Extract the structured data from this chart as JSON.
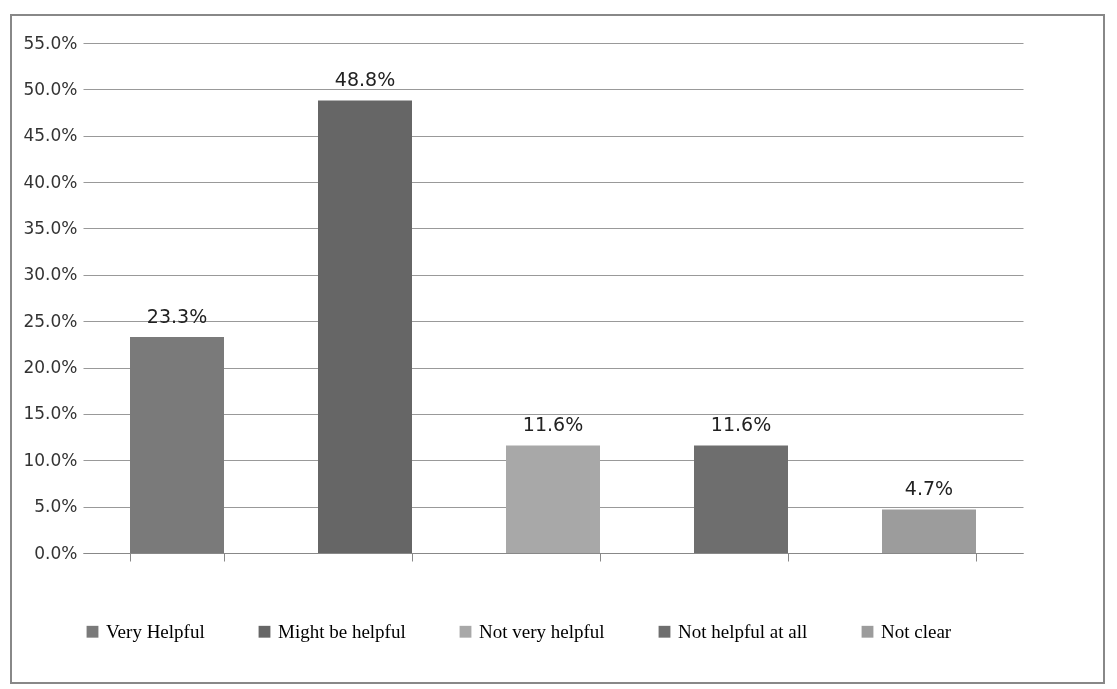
{
  "chart_data": {
    "type": "bar",
    "categories": [
      null,
      null,
      null,
      null,
      null
    ],
    "series": [
      {
        "name": "Very Helpful",
        "color": "#7a7a7a",
        "values": [
          23.3,
          null,
          null,
          null,
          null
        ],
        "value_labels": [
          "23.3%",
          null,
          null,
          null,
          null
        ]
      },
      {
        "name": "Might be helpful",
        "color": "#666666",
        "values": [
          null,
          48.8,
          null,
          null,
          null
        ],
        "value_labels": [
          null,
          "48.8%",
          null,
          null,
          null
        ]
      },
      {
        "name": "Not very helpful",
        "color": "#a8a8a8",
        "values": [
          null,
          null,
          11.6,
          null,
          null
        ],
        "value_labels": [
          null,
          null,
          "11.6%",
          null,
          null
        ]
      },
      {
        "name": "Not helpful at all",
        "color": "#6e6e6e",
        "values": [
          null,
          null,
          null,
          11.6,
          null
        ],
        "value_labels": [
          null,
          null,
          null,
          "11.6%",
          null
        ]
      },
      {
        "name": "Not clear",
        "color": "#9c9c9c",
        "values": [
          null,
          null,
          null,
          null,
          4.7
        ],
        "value_labels": [
          null,
          null,
          null,
          null,
          "4.7%"
        ]
      }
    ],
    "ylim": [
      0,
      55
    ],
    "yticks": [
      {
        "value": 0,
        "label": "0.0%"
      },
      {
        "value": 5,
        "label": "5.0%"
      },
      {
        "value": 10,
        "label": "10.0%"
      },
      {
        "value": 15,
        "label": "15.0%"
      },
      {
        "value": 20,
        "label": "20.0%"
      },
      {
        "value": 25,
        "label": "25.0%"
      },
      {
        "value": 30,
        "label": "30.0%"
      },
      {
        "value": 35,
        "label": "35.0%"
      },
      {
        "value": 40,
        "label": "40.0%"
      },
      {
        "value": 45,
        "label": "45.0%"
      },
      {
        "value": 50,
        "label": "50.0%"
      },
      {
        "value": 55,
        "label": "55.0%"
      }
    ],
    "grid": "y",
    "legend": "bottom",
    "tick_labels": "y"
  }
}
